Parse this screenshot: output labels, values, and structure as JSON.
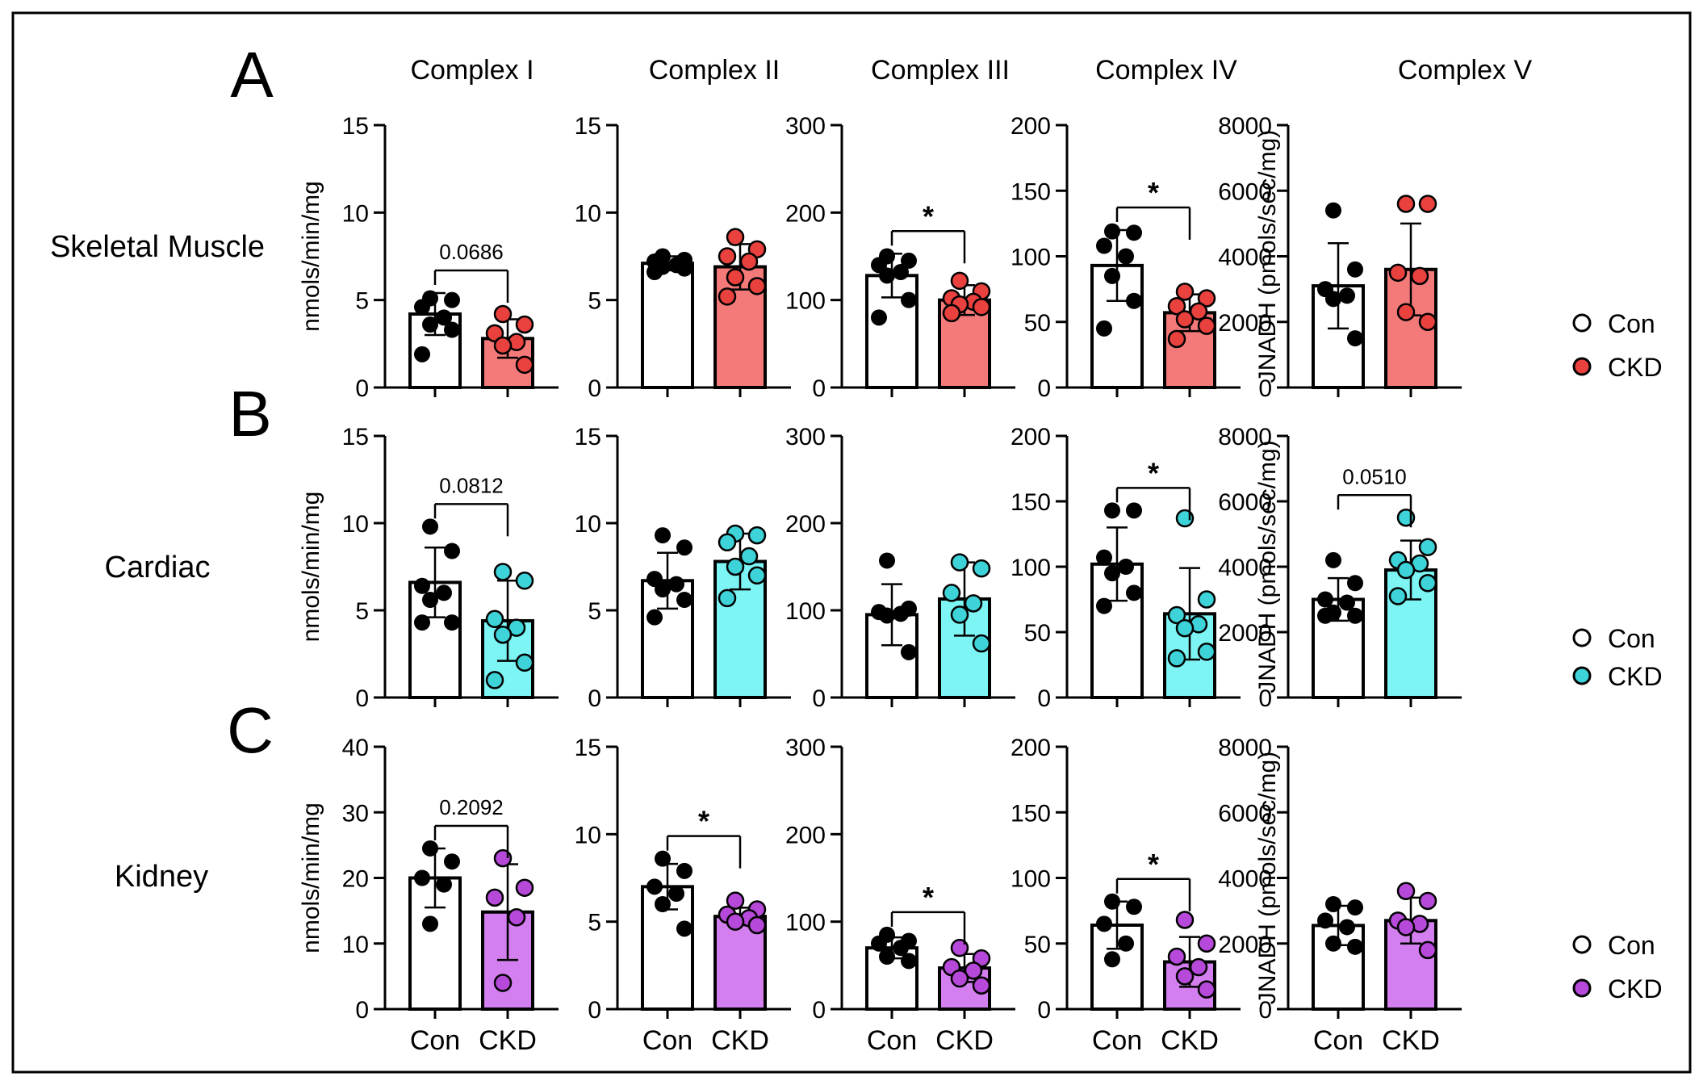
{
  "figure": {
    "column_titles": [
      "Complex I",
      "Complex II",
      "Complex III",
      "Complex IV",
      "Complex V"
    ],
    "ylabel_left": "nmols/min/mg",
    "ylabel_right": "JNADH (pmols/sec/mg)",
    "x_categories": [
      "Con",
      "CKD"
    ],
    "colors": {
      "con_fill": "#ffffff",
      "dot_con": "#000000",
      "skeletal_ckd": "#f47a7a",
      "skeletal_dot": "#e8413e",
      "cardiac_ckd": "#7ef5f5",
      "cardiac_dot": "#3ed3d8",
      "kidney_ckd": "#d47ff0",
      "kidney_dot": "#b649d9"
    }
  },
  "rows": [
    {
      "panel": "A",
      "label": "Skeletal Muscle",
      "legend": [
        "Con",
        "CKD"
      ],
      "ckd_color": "#f47a7a",
      "dot_color": "#e8413e"
    },
    {
      "panel": "B",
      "label": "Cardiac",
      "legend": [
        "Con",
        "CKD"
      ],
      "ckd_color": "#7ef5f5",
      "dot_color": "#3ed3d8"
    },
    {
      "panel": "C",
      "label": "Kidney",
      "legend": [
        "Con",
        "CKD"
      ],
      "ckd_color": "#d47ff0",
      "dot_color": "#b649d9"
    }
  ],
  "chart_data": [
    {
      "type": "bar",
      "row": 0,
      "col": 0,
      "title": "Complex I",
      "ylabel": "nmols/min/mg",
      "categories": [
        "Con",
        "CKD"
      ],
      "ylim": [
        0,
        15
      ],
      "yticks": [
        0,
        5,
        10,
        15
      ],
      "series": [
        {
          "name": "Con",
          "mean": 4.2,
          "sd": 1.2,
          "points": [
            5.1,
            5.0,
            4.6,
            4.0,
            3.6,
            3.3,
            1.9
          ]
        },
        {
          "name": "CKD",
          "mean": 2.8,
          "sd": 1.1,
          "points": [
            4.2,
            3.6,
            3.1,
            2.6,
            2.4,
            1.3
          ]
        }
      ],
      "annotation": "0.0686"
    },
    {
      "type": "bar",
      "row": 0,
      "col": 1,
      "title": "Complex II",
      "categories": [
        "Con",
        "CKD"
      ],
      "ylim": [
        0,
        15
      ],
      "yticks": [
        0,
        5,
        10,
        15
      ],
      "series": [
        {
          "name": "Con",
          "mean": 7.1,
          "sd": 0.4,
          "points": [
            7.5,
            7.3,
            7.2,
            7.0,
            6.9,
            6.8,
            6.6
          ]
        },
        {
          "name": "CKD",
          "mean": 6.9,
          "sd": 1.3,
          "points": [
            8.6,
            7.9,
            7.5,
            7.2,
            6.3,
            5.8,
            5.2
          ]
        }
      ],
      "annotation": ""
    },
    {
      "type": "bar",
      "row": 0,
      "col": 2,
      "title": "Complex III",
      "categories": [
        "Con",
        "CKD"
      ],
      "ylim": [
        0,
        300
      ],
      "yticks": [
        0,
        100,
        200,
        300
      ],
      "series": [
        {
          "name": "Con",
          "mean": 128,
          "sd": 25,
          "points": [
            150,
            145,
            140,
            132,
            128,
            100,
            80
          ]
        },
        {
          "name": "CKD",
          "mean": 100,
          "sd": 17,
          "points": [
            122,
            110,
            102,
            98,
            95,
            92,
            85
          ]
        }
      ],
      "annotation": "*"
    },
    {
      "type": "bar",
      "row": 0,
      "col": 3,
      "title": "Complex IV",
      "categories": [
        "Con",
        "CKD"
      ],
      "ylim": [
        0,
        200
      ],
      "yticks": [
        0,
        50,
        100,
        150,
        200
      ],
      "series": [
        {
          "name": "Con",
          "mean": 93,
          "sd": 27,
          "points": [
            119,
            118,
            108,
            100,
            85,
            66,
            45
          ]
        },
        {
          "name": "CKD",
          "mean": 57,
          "sd": 14,
          "points": [
            73,
            68,
            62,
            58,
            52,
            47,
            37
          ]
        }
      ],
      "annotation": "*"
    },
    {
      "type": "bar",
      "row": 0,
      "col": 4,
      "title": "Complex V",
      "ylabel": "JNADH (pmols/sec/mg)",
      "categories": [
        "Con",
        "CKD"
      ],
      "ylim": [
        0,
        8000
      ],
      "yticks": [
        0,
        2000,
        4000,
        6000,
        8000
      ],
      "series": [
        {
          "name": "Con",
          "mean": 3100,
          "sd": 1300,
          "points": [
            5400,
            3600,
            3000,
            2800,
            2700,
            1500
          ]
        },
        {
          "name": "CKD",
          "mean": 3600,
          "sd": 1400,
          "points": [
            5600,
            5600,
            3500,
            3400,
            2300,
            2000
          ]
        }
      ],
      "annotation": ""
    },
    {
      "type": "bar",
      "row": 1,
      "col": 0,
      "title": "Complex I",
      "ylabel": "nmols/min/mg",
      "categories": [
        "Con",
        "CKD"
      ],
      "ylim": [
        0,
        15
      ],
      "yticks": [
        0,
        5,
        10,
        15
      ],
      "series": [
        {
          "name": "Con",
          "mean": 6.6,
          "sd": 2.0,
          "points": [
            9.8,
            8.4,
            6.4,
            6.0,
            5.6,
            4.3,
            4.3
          ]
        },
        {
          "name": "CKD",
          "mean": 4.4,
          "sd": 2.3,
          "points": [
            7.2,
            6.7,
            4.5,
            4.0,
            3.6,
            2.0,
            1.0
          ]
        }
      ],
      "annotation": "0.0812"
    },
    {
      "type": "bar",
      "row": 1,
      "col": 1,
      "title": "Complex II",
      "categories": [
        "Con",
        "CKD"
      ],
      "ylim": [
        0,
        15
      ],
      "yticks": [
        0,
        5,
        10,
        15
      ],
      "series": [
        {
          "name": "Con",
          "mean": 6.7,
          "sd": 1.6,
          "points": [
            9.3,
            8.6,
            6.8,
            6.5,
            6.2,
            5.6,
            4.6
          ]
        },
        {
          "name": "CKD",
          "mean": 7.8,
          "sd": 1.6,
          "points": [
            9.4,
            9.3,
            8.9,
            8.1,
            7.5,
            7.0,
            5.7
          ]
        }
      ],
      "annotation": ""
    },
    {
      "type": "bar",
      "row": 1,
      "col": 2,
      "title": "Complex III",
      "categories": [
        "Con",
        "CKD"
      ],
      "ylim": [
        0,
        300
      ],
      "yticks": [
        0,
        100,
        200,
        300
      ],
      "series": [
        {
          "name": "Con",
          "mean": 95,
          "sd": 35,
          "points": [
            157,
            102,
            98,
            96,
            94,
            52
          ]
        },
        {
          "name": "CKD",
          "mean": 113,
          "sd": 42,
          "points": [
            155,
            148,
            120,
            108,
            95,
            62
          ]
        }
      ],
      "annotation": ""
    },
    {
      "type": "bar",
      "row": 1,
      "col": 3,
      "title": "Complex IV",
      "categories": [
        "Con",
        "CKD"
      ],
      "ylim": [
        0,
        200
      ],
      "yticks": [
        0,
        50,
        100,
        150,
        200
      ],
      "series": [
        {
          "name": "Con",
          "mean": 102,
          "sd": 28,
          "points": [
            143,
            143,
            107,
            100,
            95,
            80,
            70
          ]
        },
        {
          "name": "CKD",
          "mean": 64,
          "sd": 35,
          "points": [
            137,
            75,
            63,
            56,
            53,
            35,
            30
          ]
        }
      ],
      "annotation": "*"
    },
    {
      "type": "bar",
      "row": 1,
      "col": 4,
      "title": "Complex V",
      "ylabel": "JNADH (pmols/sec/mg)",
      "categories": [
        "Con",
        "CKD"
      ],
      "ylim": [
        0,
        8000
      ],
      "yticks": [
        0,
        2000,
        4000,
        6000,
        8000
      ],
      "series": [
        {
          "name": "Con",
          "mean": 3000,
          "sd": 650,
          "points": [
            4200,
            3500,
            3000,
            2900,
            2600,
            2500,
            2500
          ]
        },
        {
          "name": "CKD",
          "mean": 3900,
          "sd": 900,
          "points": [
            5500,
            4600,
            4200,
            4100,
            3900,
            3500,
            3100
          ]
        }
      ],
      "annotation": "0.0510"
    },
    {
      "type": "bar",
      "row": 2,
      "col": 0,
      "title": "Complex I",
      "ylabel": "nmols/min/mg",
      "categories": [
        "Con",
        "CKD"
      ],
      "ylim": [
        0,
        40
      ],
      "yticks": [
        0,
        10,
        20,
        30,
        40
      ],
      "series": [
        {
          "name": "Con",
          "mean": 20,
          "sd": 4.5,
          "points": [
            24.5,
            22.5,
            20,
            19,
            13
          ]
        },
        {
          "name": "CKD",
          "mean": 14.8,
          "sd": 7.3,
          "points": [
            23,
            18.5,
            17,
            14,
            4
          ]
        }
      ],
      "annotation": "0.2092"
    },
    {
      "type": "bar",
      "row": 2,
      "col": 1,
      "title": "Complex II",
      "categories": [
        "Con",
        "CKD"
      ],
      "ylim": [
        0,
        15
      ],
      "yticks": [
        0,
        5,
        10,
        15
      ],
      "series": [
        {
          "name": "Con",
          "mean": 7.0,
          "sd": 1.3,
          "points": [
            8.6,
            7.9,
            7.0,
            6.6,
            6.0,
            4.6
          ]
        },
        {
          "name": "CKD",
          "mean": 5.3,
          "sd": 0.5,
          "points": [
            6.2,
            5.7,
            5.4,
            5.2,
            5.0,
            4.8
          ]
        }
      ],
      "annotation": "*"
    },
    {
      "type": "bar",
      "row": 2,
      "col": 2,
      "title": "Complex III",
      "categories": [
        "Con",
        "CKD"
      ],
      "ylim": [
        0,
        300
      ],
      "yticks": [
        0,
        100,
        200,
        300
      ],
      "series": [
        {
          "name": "Con",
          "mean": 70,
          "sd": 12,
          "points": [
            85,
            78,
            75,
            70,
            60,
            55
          ]
        },
        {
          "name": "CKD",
          "mean": 47,
          "sd": 16,
          "points": [
            70,
            58,
            48,
            44,
            35,
            27
          ]
        }
      ],
      "annotation": "*"
    },
    {
      "type": "bar",
      "row": 2,
      "col": 3,
      "title": "Complex IV",
      "categories": [
        "Con",
        "CKD"
      ],
      "ylim": [
        0,
        200
      ],
      "yticks": [
        0,
        50,
        100,
        150,
        200
      ],
      "series": [
        {
          "name": "Con",
          "mean": 64,
          "sd": 18,
          "points": [
            82,
            78,
            65,
            50,
            38
          ]
        },
        {
          "name": "CKD",
          "mean": 36,
          "sd": 19,
          "points": [
            68,
            50,
            40,
            32,
            25,
            15
          ]
        }
      ],
      "annotation": "*"
    },
    {
      "type": "bar",
      "row": 2,
      "col": 4,
      "title": "Complex V",
      "ylabel": "JNADH (pmols/sec/mg)",
      "categories": [
        "Con",
        "CKD"
      ],
      "ylim": [
        0,
        8000
      ],
      "yticks": [
        0,
        2000,
        4000,
        6000,
        8000
      ],
      "series": [
        {
          "name": "Con",
          "mean": 2550,
          "sd": 600,
          "points": [
            3200,
            3100,
            2700,
            2500,
            2000,
            1900
          ]
        },
        {
          "name": "CKD",
          "mean": 2700,
          "sd": 700,
          "points": [
            3600,
            3300,
            2700,
            2600,
            2500,
            1800
          ]
        }
      ],
      "annotation": ""
    }
  ]
}
